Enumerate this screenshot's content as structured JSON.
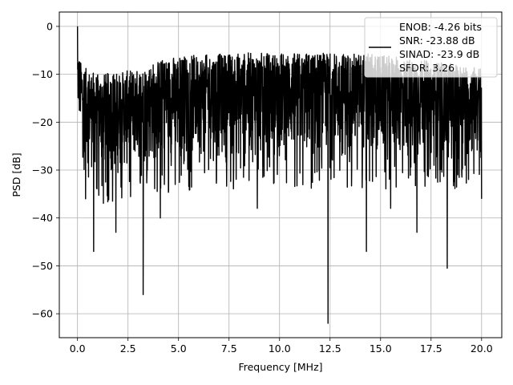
{
  "chart_data": {
    "type": "line",
    "title": "",
    "xlabel": "Frequency [MHz]",
    "ylabel": "PSD [dB]",
    "xlim": [
      -0.9,
      21.0
    ],
    "ylim": [
      -65,
      3
    ],
    "x_ticks": [
      0.0,
      2.5,
      5.0,
      7.5,
      10.0,
      12.5,
      15.0,
      17.5,
      20.0
    ],
    "x_tick_labels": [
      "0.0",
      "2.5",
      "5.0",
      "7.5",
      "10.0",
      "12.5",
      "15.0",
      "17.5",
      "20.0"
    ],
    "y_ticks": [
      0,
      -10,
      -20,
      -30,
      -40,
      -50,
      -60
    ],
    "y_tick_labels": [
      "0",
      "−10",
      "−20",
      "−30",
      "−40",
      "−50",
      "−60"
    ],
    "grid": true,
    "legend": {
      "placement": "top-right",
      "entries": [
        "ENOB: -4.26 bits",
        "SNR: -23.88 dB",
        "SINAD: -23.9 dB",
        "SFDR: 3.26"
      ]
    },
    "series": [
      {
        "color": "#000000",
        "x_range": [
          0,
          20
        ],
        "peak": {
          "x": 0.0,
          "y": 0.0
        },
        "noise_envelope": {
          "x": [
            0.0,
            0.2,
            0.5,
            1.0,
            2.0,
            3.0,
            4.0,
            5.0,
            6.0,
            8.0,
            10.0,
            12.0,
            14.0,
            16.0,
            18.0,
            20.0
          ],
          "upper": [
            -5,
            -8,
            -9,
            -10,
            -9.5,
            -9,
            -7,
            -6,
            -6,
            -5.5,
            -5.5,
            -5.5,
            -5.5,
            -6.5,
            -7.5,
            -8.5
          ],
          "lower": [
            -20,
            -25,
            -30,
            -32,
            -32,
            -30,
            -30,
            -30,
            -29,
            -29,
            -29,
            -29,
            -29,
            -29,
            -29,
            -29
          ]
        },
        "deep_nulls": [
          {
            "x": 0.4,
            "y": -36.0
          },
          {
            "x": 0.8,
            "y": -47.0
          },
          {
            "x": 1.9,
            "y": -43.0
          },
          {
            "x": 3.25,
            "y": -56.0
          },
          {
            "x": 4.1,
            "y": -40.0
          },
          {
            "x": 8.9,
            "y": -38.0
          },
          {
            "x": 12.4,
            "y": -62.0
          },
          {
            "x": 14.3,
            "y": -47.0
          },
          {
            "x": 15.5,
            "y": -38.0
          },
          {
            "x": 16.8,
            "y": -43.0
          },
          {
            "x": 18.3,
            "y": -50.5
          },
          {
            "x": 20.0,
            "y": -36.0
          }
        ]
      }
    ]
  }
}
